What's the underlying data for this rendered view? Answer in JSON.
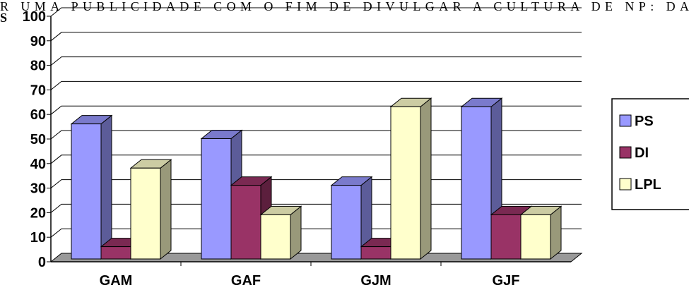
{
  "chart_data": {
    "type": "bar3d",
    "annotations": [
      "R UMA PUBLICIDADE COM O FIM DE DIVULGAR A CULTURA DE NP: DA",
      "S"
    ],
    "categories": [
      "GAM",
      "GAF",
      "GJM",
      "GJF"
    ],
    "series": [
      {
        "name": "PS",
        "color": "#9999ff",
        "values": [
          55,
          49,
          30,
          62
        ]
      },
      {
        "name": "DI",
        "color": "#993366",
        "values": [
          5,
          30,
          5,
          18
        ]
      },
      {
        "name": "LPL",
        "color": "#ffffcc",
        "values": [
          37,
          18,
          62,
          18
        ]
      }
    ],
    "ylim": [
      0,
      100
    ],
    "yticks": [
      0,
      10,
      20,
      30,
      40,
      50,
      60,
      70,
      80,
      90,
      100
    ],
    "grid": true,
    "legend": "right"
  }
}
